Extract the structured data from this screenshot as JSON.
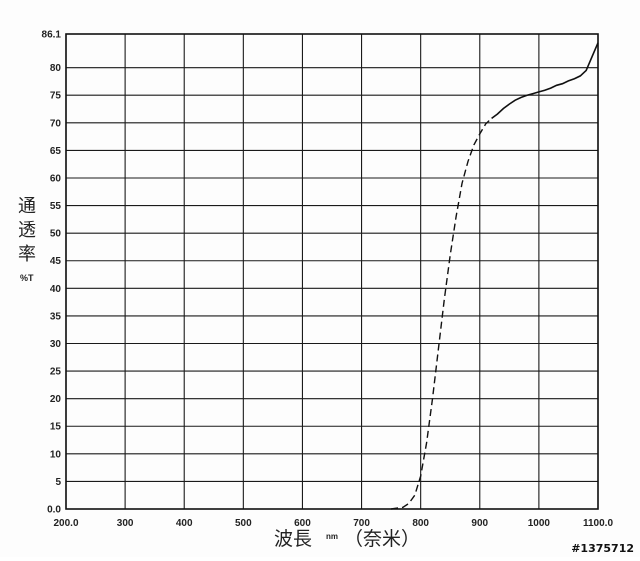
{
  "chart_data": {
    "type": "line",
    "ylabel_chars": [
      "通",
      "透",
      "率"
    ],
    "ylabel_unit": "%T",
    "xlabel": "波長",
    "xlabel_unit": "nm",
    "xlabel_note": "（奈米）",
    "xlim": [
      200,
      1100
    ],
    "ylim": [
      0,
      86.1
    ],
    "x_ticks": [
      200,
      300,
      400,
      500,
      600,
      700,
      800,
      900,
      1000,
      1100
    ],
    "x_tick_labels": [
      "200.0",
      "300",
      "400",
      "500",
      "600",
      "700",
      "800",
      "900",
      "1000",
      "1100.0"
    ],
    "y_ticks": [
      0,
      5,
      10,
      15,
      20,
      25,
      30,
      35,
      40,
      45,
      50,
      55,
      60,
      65,
      70,
      75,
      80,
      86.1
    ],
    "y_tick_labels": [
      "0.0",
      "5",
      "10",
      "15",
      "20",
      "25",
      "30",
      "35",
      "40",
      "45",
      "50",
      "55",
      "60",
      "65",
      "70",
      "75",
      "80",
      "86.1"
    ],
    "grid": true,
    "line_color": "#111111",
    "series": [
      {
        "x": [
          750,
          770,
          780,
          790,
          800,
          810,
          820,
          830,
          840,
          850,
          860,
          870,
          880,
          890,
          900,
          910,
          920,
          930,
          940,
          950,
          960,
          970,
          980,
          990,
          1000,
          1010,
          1020,
          1030,
          1040,
          1050,
          1060,
          1070,
          1080,
          1090,
          1100
        ],
        "y": [
          0,
          0.3,
          1.0,
          2.5,
          6,
          12,
          20,
          29,
          38,
          46,
          53,
          59,
          63,
          66,
          68,
          69.8,
          70.8,
          71.6,
          72.6,
          73.4,
          74.1,
          74.6,
          75,
          75.3,
          75.6,
          75.9,
          76.3,
          76.8,
          77.1,
          77.6,
          78,
          78.5,
          79.5,
          82,
          84.5
        ]
      }
    ]
  },
  "watermark": "#1375712"
}
